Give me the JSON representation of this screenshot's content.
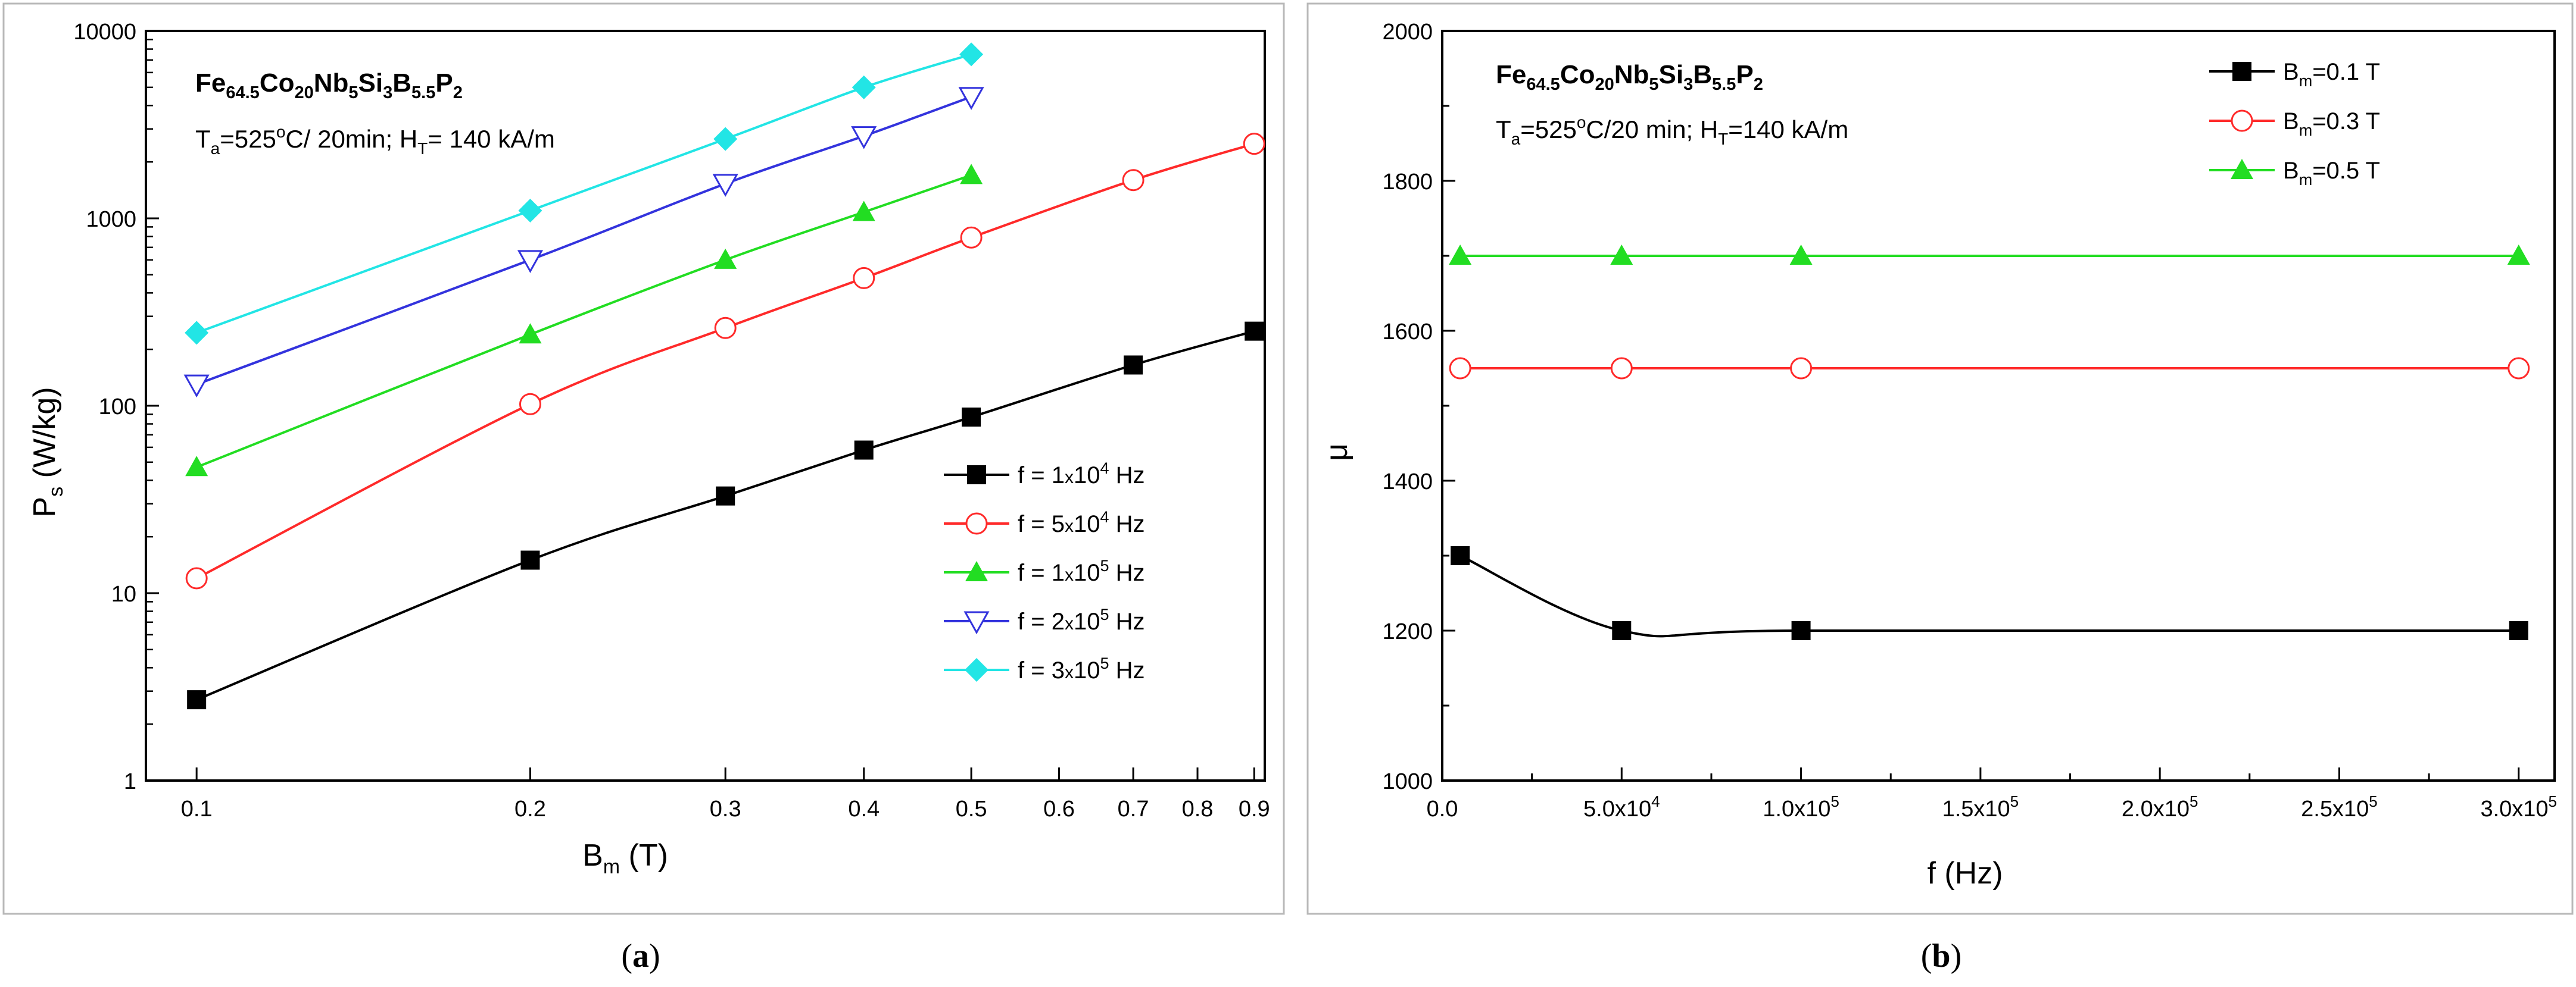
{
  "colors": {
    "black": "#000000",
    "red": "#ff2a2a",
    "green": "#22dd22",
    "blue": "#3333dd",
    "cyan": "#22e5e5",
    "frame": "#b8b8b8"
  },
  "panels": [
    {
      "caption_open": "(",
      "caption_letter": "a",
      "caption_close": ")",
      "alloy": {
        "a": "Fe",
        "a_sub": "64.5",
        "b": "Co",
        "b_sub": "20",
        "c": "Nb",
        "c_sub": "5",
        "d": "Si",
        "d_sub": "3",
        "e": "B",
        "e_sub": "5.5",
        "f": "P",
        "f_sub": "2"
      },
      "condition": {
        "t_main": "T",
        "t_sub": "a",
        "t_val": "=525",
        "deg": "o",
        "t_rest": "C/ 20min; H",
        "h_sub": "T",
        "h_val": "= 140 kA/m"
      }
    },
    {
      "caption_open": "(",
      "caption_letter": "b",
      "caption_close": ")",
      "alloy": {
        "a": "Fe",
        "a_sub": "64.5",
        "b": "Co",
        "b_sub": "20",
        "c": "Nb",
        "c_sub": "5",
        "d": "Si",
        "d_sub": "3",
        "e": "B",
        "e_sub": "5.5",
        "f": "P",
        "f_sub": "2"
      },
      "condition": {
        "t_main": "T",
        "t_sub": "a",
        "t_val": "=525",
        "deg": "o",
        "t_rest": "C/20 min; H",
        "h_sub": "T",
        "h_val": "=140 kA/m"
      }
    }
  ],
  "chart_data": [
    {
      "type": "line",
      "xscale": "log",
      "yscale": "log",
      "xlim": [
        0.09,
        0.92
      ],
      "ylim": [
        1,
        10000
      ],
      "xlabel": {
        "main": "B",
        "sub": "m",
        "rest": " (T)"
      },
      "ylabel": {
        "main": "P",
        "sub": "s",
        "rest": " (W/kg)"
      },
      "xticks": [
        {
          "value": 0.1,
          "label": "0.1"
        },
        {
          "value": 0.2,
          "label": "0.2"
        },
        {
          "value": 0.3,
          "label": "0.3"
        },
        {
          "value": 0.4,
          "label": "0.4"
        },
        {
          "value": 0.5,
          "label": "0.5"
        },
        {
          "value": 0.6,
          "label": "0.6"
        },
        {
          "value": 0.7,
          "label": "0.7"
        },
        {
          "value": 0.8,
          "label": "0.8"
        },
        {
          "value": 0.9,
          "label": "0.9"
        }
      ],
      "yticks": [
        {
          "value": 1,
          "label": "1"
        },
        {
          "value": 10,
          "label": "10"
        },
        {
          "value": 100,
          "label": "100"
        },
        {
          "value": 1000,
          "label": "1000"
        },
        {
          "value": 10000,
          "label": "10000"
        }
      ],
      "legend_position": "right",
      "series": [
        {
          "name": "f = 1x10^4 Hz",
          "pre": "f = 1",
          "times": "x",
          "base": "10",
          "exp": "4",
          "unit": " Hz",
          "color": "#000000",
          "marker": "square",
          "x": [
            0.1,
            0.2,
            0.3,
            0.4,
            0.5,
            0.7,
            0.9
          ],
          "y": [
            2.7,
            15,
            33,
            58,
            87,
            165,
            250
          ]
        },
        {
          "name": "f = 5x10^4 Hz",
          "pre": "f = 5",
          "times": "x",
          "base": "10",
          "exp": "4",
          "unit": " Hz",
          "color": "#ff2a2a",
          "marker": "circle-open",
          "x": [
            0.1,
            0.2,
            0.3,
            0.4,
            0.5,
            0.7,
            0.9
          ],
          "y": [
            12,
            102,
            260,
            480,
            790,
            1600,
            2500
          ]
        },
        {
          "name": "f = 1x10^5 Hz",
          "pre": "f = 1",
          "times": "x",
          "base": "10",
          "exp": "5",
          "unit": " Hz",
          "color": "#22dd22",
          "marker": "triangle-up",
          "x": [
            0.1,
            0.2,
            0.3,
            0.4,
            0.5
          ],
          "y": [
            47,
            240,
            600,
            1080,
            1700
          ]
        },
        {
          "name": "f = 2x10^5 Hz",
          "pre": "f = 2",
          "times": "x",
          "base": "10",
          "exp": "5",
          "unit": " Hz",
          "color": "#3333dd",
          "marker": "triangle-down-open",
          "x": [
            0.1,
            0.2,
            0.3,
            0.4,
            0.5
          ],
          "y": [
            130,
            600,
            1530,
            2750,
            4450
          ]
        },
        {
          "name": "f = 3x10^5 Hz",
          "pre": "f = 3",
          "times": "x",
          "base": "10",
          "exp": "5",
          "unit": " Hz",
          "color": "#22e5e5",
          "marker": "diamond",
          "x": [
            0.1,
            0.2,
            0.3,
            0.4,
            0.5
          ],
          "y": [
            245,
            1100,
            2650,
            5000,
            7500
          ]
        }
      ]
    },
    {
      "type": "line",
      "xscale": "linear",
      "yscale": "linear",
      "xlim": [
        0,
        310000
      ],
      "ylim": [
        1000,
        2000
      ],
      "xlabel": {
        "main": "f (Hz)"
      },
      "ylabel": {
        "main": "μ"
      },
      "xticks": [
        {
          "value": 0,
          "label": "0.0"
        },
        {
          "value": 50000,
          "label": "5.0x10",
          "exp": "4"
        },
        {
          "value": 100000,
          "label": "1.0x10",
          "exp": "5"
        },
        {
          "value": 150000,
          "label": "1.5x10",
          "exp": "5"
        },
        {
          "value": 200000,
          "label": "2.0x10",
          "exp": "5"
        },
        {
          "value": 250000,
          "label": "2.5x10",
          "exp": "5"
        },
        {
          "value": 300000,
          "label": "3.0x10",
          "exp": "5"
        }
      ],
      "yticks": [
        {
          "value": 1000,
          "label": "1000"
        },
        {
          "value": 1200,
          "label": "1200"
        },
        {
          "value": 1400,
          "label": "1400"
        },
        {
          "value": 1600,
          "label": "1600"
        },
        {
          "value": 1800,
          "label": "1800"
        },
        {
          "value": 2000,
          "label": "2000"
        }
      ],
      "legend_position": "top-right",
      "series": [
        {
          "name": "Bm=0.1 T",
          "pre": "B",
          "sub": "m",
          "unit": "=0.1 T",
          "color": "#000000",
          "marker": "square",
          "x": [
            5000,
            50000,
            100000,
            300000
          ],
          "y": [
            1300,
            1200,
            1200,
            1200
          ]
        },
        {
          "name": "Bm=0.3 T",
          "pre": "B",
          "sub": "m",
          "unit": "=0.3 T",
          "color": "#ff2a2a",
          "marker": "circle-open",
          "x": [
            5000,
            50000,
            100000,
            300000
          ],
          "y": [
            1550,
            1550,
            1550,
            1550
          ]
        },
        {
          "name": "Bm=0.5 T",
          "pre": "B",
          "sub": "m",
          "unit": "=0.5 T",
          "color": "#22dd22",
          "marker": "triangle-up",
          "x": [
            5000,
            50000,
            100000,
            300000
          ],
          "y": [
            1700,
            1700,
            1700,
            1700
          ]
        }
      ]
    }
  ]
}
